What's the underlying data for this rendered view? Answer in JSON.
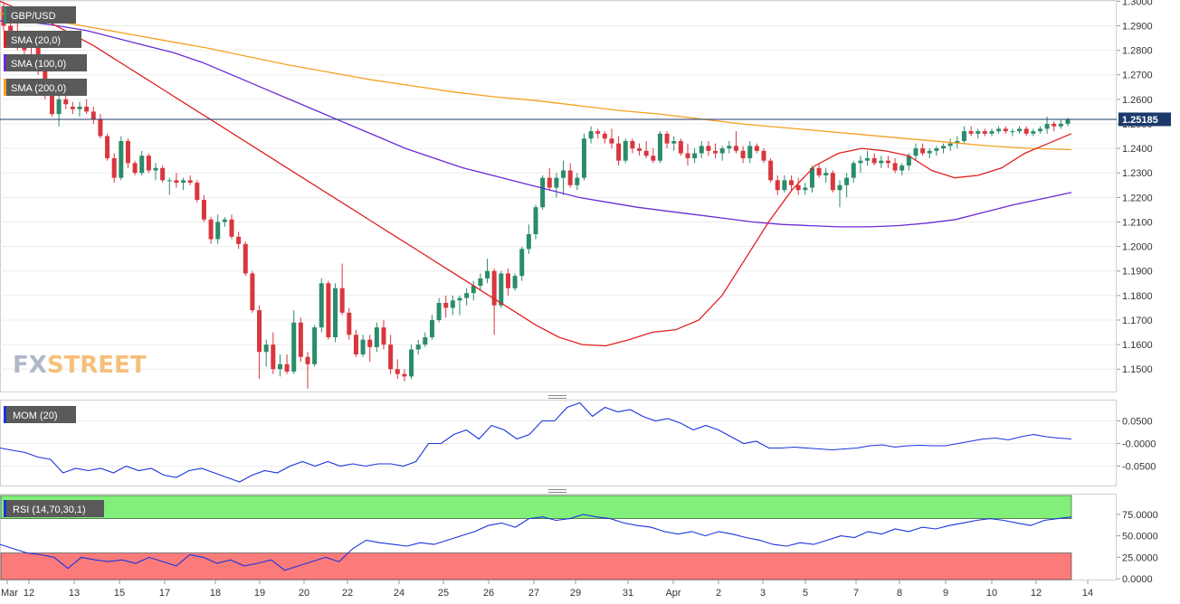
{
  "symbol": "GBP/USD",
  "watermark": {
    "part1": "FX",
    "part2": "STREET"
  },
  "indicators": {
    "sma20": {
      "label": "SMA (20,0)",
      "color": "#e02020"
    },
    "sma100": {
      "label": "SMA (100,0)",
      "color": "#6a2ad6"
    },
    "sma200": {
      "label": "SMA (200,0)",
      "color": "#f5a020"
    },
    "mom": {
      "label": "MOM (20)",
      "color": "#1a33dd"
    },
    "rsi": {
      "label": "RSI (14,70,30,1)",
      "color": "#1a33dd"
    }
  },
  "colors": {
    "up": "#2a8c6a",
    "down": "#d9363e",
    "current_price": "#1b3a6b",
    "overbought": "#80f07a",
    "oversold": "#fb7b7b"
  },
  "current_price": {
    "value": 1.25185,
    "label": "1.25185"
  },
  "chart_data": [
    {
      "type": "candlestick",
      "title": "GBP/USD",
      "ylim": [
        1.1405,
        1.3005
      ],
      "y_ticks": [
        "1.3000",
        "1.2900",
        "1.2800",
        "1.2700",
        "1.2600",
        "1.2500",
        "1.2400",
        "1.2300",
        "1.2200",
        "1.2100",
        "1.2000",
        "1.1900",
        "1.1800",
        "1.1700",
        "1.1600",
        "1.1500"
      ],
      "x_ticks": [
        "Mar",
        "12",
        "13",
        "15",
        "17",
        "18",
        "19",
        "20",
        "22",
        "24",
        "25",
        "26",
        "27",
        "29",
        "31",
        "Apr",
        "2",
        "3",
        "5",
        "7",
        "8",
        "9",
        "10",
        "12",
        "14"
      ],
      "candles_ohlc": [
        [
          1.298,
          1.299,
          1.288,
          1.29
        ],
        [
          1.29,
          1.295,
          1.285,
          1.288
        ],
        [
          1.287,
          1.292,
          1.28,
          1.283
        ],
        [
          1.283,
          1.288,
          1.278,
          1.28
        ],
        [
          1.282,
          1.284,
          1.278,
          1.281
        ],
        [
          1.281,
          1.283,
          1.27,
          1.272
        ],
        [
          1.272,
          1.274,
          1.26,
          1.262
        ],
        [
          1.262,
          1.264,
          1.253,
          1.254
        ],
        [
          1.254,
          1.262,
          1.249,
          1.26
        ],
        [
          1.26,
          1.262,
          1.256,
          1.258
        ],
        [
          1.257,
          1.259,
          1.254,
          1.256
        ],
        [
          1.256,
          1.259,
          1.253,
          1.257
        ],
        [
          1.257,
          1.26,
          1.254,
          1.255
        ],
        [
          1.255,
          1.257,
          1.25,
          1.252
        ],
        [
          1.252,
          1.254,
          1.244,
          1.245
        ],
        [
          1.245,
          1.246,
          1.235,
          1.236
        ],
        [
          1.236,
          1.238,
          1.226,
          1.228
        ],
        [
          1.228,
          1.245,
          1.227,
          1.243
        ],
        [
          1.243,
          1.244,
          1.232,
          1.234
        ],
        [
          1.234,
          1.235,
          1.229,
          1.23
        ],
        [
          1.23,
          1.239,
          1.229,
          1.237
        ],
        [
          1.237,
          1.238,
          1.23,
          1.231
        ],
        [
          1.231,
          1.234,
          1.227,
          1.232
        ],
        [
          1.232,
          1.233,
          1.226,
          1.227
        ],
        [
          1.227,
          1.228,
          1.221,
          1.227
        ],
        [
          1.227,
          1.23,
          1.224,
          1.226
        ],
        [
          1.226,
          1.228,
          1.223,
          1.227
        ],
        [
          1.227,
          1.229,
          1.225,
          1.226
        ],
        [
          1.226,
          1.227,
          1.218,
          1.219
        ],
        [
          1.219,
          1.221,
          1.21,
          1.211
        ],
        [
          1.211,
          1.212,
          1.201,
          1.203
        ],
        [
          1.203,
          1.213,
          1.201,
          1.21
        ],
        [
          1.21,
          1.212,
          1.208,
          1.211
        ],
        [
          1.211,
          1.213,
          1.203,
          1.204
        ],
        [
          1.204,
          1.206,
          1.199,
          1.201
        ],
        [
          1.201,
          1.202,
          1.188,
          1.189
        ],
        [
          1.189,
          1.19,
          1.173,
          1.174
        ],
        [
          1.174,
          1.176,
          1.146,
          1.157
        ],
        [
          1.157,
          1.162,
          1.151,
          1.16
        ],
        [
          1.16,
          1.165,
          1.148,
          1.15
        ],
        [
          1.15,
          1.156,
          1.147,
          1.152
        ],
        [
          1.152,
          1.156,
          1.148,
          1.149
        ],
        [
          1.149,
          1.174,
          1.148,
          1.169
        ],
        [
          1.169,
          1.171,
          1.153,
          1.155
        ],
        [
          1.155,
          1.157,
          1.142,
          1.152
        ],
        [
          1.152,
          1.168,
          1.151,
          1.167
        ],
        [
          1.167,
          1.187,
          1.165,
          1.185
        ],
        [
          1.185,
          1.186,
          1.162,
          1.163
        ],
        [
          1.163,
          1.185,
          1.161,
          1.183
        ],
        [
          1.183,
          1.193,
          1.172,
          1.173
        ],
        [
          1.173,
          1.175,
          1.162,
          1.164
        ],
        [
          1.164,
          1.166,
          1.155,
          1.156
        ],
        [
          1.156,
          1.164,
          1.155,
          1.162
        ],
        [
          1.162,
          1.164,
          1.153,
          1.159
        ],
        [
          1.159,
          1.169,
          1.157,
          1.167
        ],
        [
          1.167,
          1.17,
          1.158,
          1.16
        ],
        [
          1.16,
          1.164,
          1.148,
          1.15
        ],
        [
          1.15,
          1.154,
          1.146,
          1.148
        ],
        [
          1.148,
          1.15,
          1.145,
          1.147
        ],
        [
          1.147,
          1.16,
          1.146,
          1.158
        ],
        [
          1.158,
          1.162,
          1.156,
          1.16
        ],
        [
          1.16,
          1.165,
          1.159,
          1.163
        ],
        [
          1.163,
          1.172,
          1.162,
          1.17
        ],
        [
          1.17,
          1.179,
          1.169,
          1.177
        ],
        [
          1.177,
          1.18,
          1.171,
          1.175
        ],
        [
          1.175,
          1.18,
          1.172,
          1.178
        ],
        [
          1.178,
          1.18,
          1.172,
          1.179
        ],
        [
          1.179,
          1.183,
          1.176,
          1.181
        ],
        [
          1.181,
          1.186,
          1.178,
          1.184
        ],
        [
          1.184,
          1.189,
          1.182,
          1.187
        ],
        [
          1.187,
          1.195,
          1.185,
          1.19
        ],
        [
          1.19,
          1.191,
          1.164,
          1.176
        ],
        [
          1.176,
          1.19,
          1.175,
          1.189
        ],
        [
          1.189,
          1.191,
          1.18,
          1.183
        ],
        [
          1.183,
          1.189,
          1.182,
          1.188
        ],
        [
          1.188,
          1.2,
          1.186,
          1.199
        ],
        [
          1.199,
          1.209,
          1.197,
          1.205
        ],
        [
          1.205,
          1.217,
          1.203,
          1.216
        ],
        [
          1.216,
          1.229,
          1.215,
          1.228
        ],
        [
          1.228,
          1.232,
          1.223,
          1.224
        ],
        [
          1.224,
          1.23,
          1.22,
          1.228
        ],
        [
          1.228,
          1.235,
          1.221,
          1.231
        ],
        [
          1.231,
          1.234,
          1.224,
          1.225
        ],
        [
          1.225,
          1.23,
          1.223,
          1.228
        ],
        [
          1.228,
          1.246,
          1.227,
          1.244
        ],
        [
          1.244,
          1.249,
          1.242,
          1.247
        ],
        [
          1.247,
          1.248,
          1.244,
          1.246
        ],
        [
          1.246,
          1.247,
          1.242,
          1.244
        ],
        [
          1.244,
          1.248,
          1.24,
          1.242
        ],
        [
          1.242,
          1.245,
          1.233,
          1.235
        ],
        [
          1.235,
          1.244,
          1.234,
          1.243
        ],
        [
          1.243,
          1.244,
          1.238,
          1.24
        ],
        [
          1.24,
          1.242,
          1.237,
          1.239
        ],
        [
          1.239,
          1.243,
          1.236,
          1.237
        ],
        [
          1.237,
          1.24,
          1.234,
          1.235
        ],
        [
          1.235,
          1.247,
          1.234,
          1.246
        ],
        [
          1.246,
          1.247,
          1.24,
          1.242
        ],
        [
          1.242,
          1.245,
          1.239,
          1.243
        ],
        [
          1.243,
          1.244,
          1.237,
          1.238
        ],
        [
          1.238,
          1.242,
          1.233,
          1.236
        ],
        [
          1.236,
          1.24,
          1.234,
          1.238
        ],
        [
          1.238,
          1.243,
          1.236,
          1.241
        ],
        [
          1.241,
          1.243,
          1.237,
          1.239
        ],
        [
          1.239,
          1.242,
          1.236,
          1.238
        ],
        [
          1.238,
          1.241,
          1.235,
          1.24
        ],
        [
          1.24,
          1.243,
          1.238,
          1.241
        ],
        [
          1.241,
          1.247,
          1.238,
          1.239
        ],
        [
          1.239,
          1.241,
          1.234,
          1.236
        ],
        [
          1.236,
          1.243,
          1.234,
          1.241
        ],
        [
          1.241,
          1.242,
          1.238,
          1.239
        ],
        [
          1.239,
          1.24,
          1.234,
          1.235
        ],
        [
          1.235,
          1.236,
          1.226,
          1.227
        ],
        [
          1.227,
          1.229,
          1.221,
          1.223
        ],
        [
          1.223,
          1.229,
          1.222,
          1.227
        ],
        [
          1.227,
          1.229,
          1.223,
          1.225
        ],
        [
          1.225,
          1.228,
          1.221,
          1.223
        ],
        [
          1.223,
          1.226,
          1.221,
          1.224
        ],
        [
          1.224,
          1.233,
          1.222,
          1.232
        ],
        [
          1.232,
          1.234,
          1.228,
          1.229
        ],
        [
          1.229,
          1.232,
          1.226,
          1.23
        ],
        [
          1.23,
          1.231,
          1.222,
          1.223
        ],
        [
          1.223,
          1.227,
          1.216,
          1.225
        ],
        [
          1.225,
          1.23,
          1.22,
          1.228
        ],
        [
          1.228,
          1.235,
          1.226,
          1.234
        ],
        [
          1.234,
          1.237,
          1.23,
          1.235
        ],
        [
          1.235,
          1.239,
          1.233,
          1.236
        ],
        [
          1.236,
          1.238,
          1.233,
          1.234
        ],
        [
          1.234,
          1.237,
          1.232,
          1.235
        ],
        [
          1.235,
          1.237,
          1.232,
          1.234
        ],
        [
          1.234,
          1.236,
          1.23,
          1.231
        ],
        [
          1.231,
          1.234,
          1.229,
          1.233
        ],
        [
          1.233,
          1.238,
          1.231,
          1.237
        ],
        [
          1.237,
          1.242,
          1.235,
          1.24
        ],
        [
          1.24,
          1.242,
          1.237,
          1.238
        ],
        [
          1.238,
          1.24,
          1.236,
          1.239
        ],
        [
          1.239,
          1.241,
          1.237,
          1.24
        ],
        [
          1.24,
          1.242,
          1.238,
          1.241
        ],
        [
          1.241,
          1.244,
          1.239,
          1.242
        ],
        [
          1.242,
          1.245,
          1.24,
          1.243
        ],
        [
          1.243,
          1.249,
          1.242,
          1.247
        ],
        [
          1.247,
          1.249,
          1.245,
          1.246
        ],
        [
          1.246,
          1.248,
          1.244,
          1.247
        ],
        [
          1.247,
          1.248,
          1.245,
          1.246
        ],
        [
          1.246,
          1.248,
          1.245,
          1.247
        ],
        [
          1.247,
          1.249,
          1.246,
          1.248
        ],
        [
          1.248,
          1.249,
          1.246,
          1.247
        ],
        [
          1.247,
          1.248,
          1.245,
          1.247
        ],
        [
          1.247,
          1.249,
          1.246,
          1.248
        ],
        [
          1.248,
          1.249,
          1.245,
          1.246
        ],
        [
          1.246,
          1.248,
          1.245,
          1.247
        ],
        [
          1.247,
          1.249,
          1.246,
          1.248
        ],
        [
          1.248,
          1.253,
          1.246,
          1.25
        ],
        [
          1.25,
          1.251,
          1.247,
          1.249
        ],
        [
          1.249,
          1.252,
          1.248,
          1.25
        ],
        [
          1.25,
          1.2525,
          1.249,
          1.2518
        ]
      ],
      "sma20": [
        1.3,
        1.296,
        1.292,
        1.287,
        1.282,
        1.276,
        1.27,
        1.264,
        1.258,
        1.252,
        1.246,
        1.24,
        1.234,
        1.228,
        1.222,
        1.216,
        1.21,
        1.204,
        1.198,
        1.192,
        1.186,
        1.18,
        1.174,
        1.168,
        1.163,
        1.16,
        1.1595,
        1.162,
        1.165,
        1.166,
        1.17,
        1.18,
        1.195,
        1.21,
        1.223,
        1.233,
        1.238,
        1.24,
        1.239,
        1.237,
        1.231,
        1.228,
        1.229,
        1.232,
        1.238,
        1.242,
        1.246
      ],
      "sma100": [
        1.292,
        1.2915,
        1.29,
        1.288,
        1.285,
        1.282,
        1.279,
        1.275,
        1.27,
        1.265,
        1.26,
        1.255,
        1.25,
        1.245,
        1.24,
        1.236,
        1.232,
        1.229,
        1.226,
        1.223,
        1.22,
        1.218,
        1.216,
        1.2145,
        1.213,
        1.2115,
        1.21,
        1.209,
        1.2085,
        1.208,
        1.208,
        1.2085,
        1.2095,
        1.211,
        1.214,
        1.217,
        1.2195,
        1.222
      ],
      "sma200": [
        1.295,
        1.293,
        1.29,
        1.287,
        1.284,
        1.281,
        1.2775,
        1.274,
        1.271,
        1.268,
        1.2655,
        1.263,
        1.261,
        1.2595,
        1.2575,
        1.2555,
        1.254,
        1.252,
        1.25,
        1.2485,
        1.247,
        1.2455,
        1.244,
        1.2425,
        1.241,
        1.24,
        1.2395
      ],
      "mom": {
        "ylim": [
          -0.095,
          0.095
        ],
        "y_ticks": [
          "0.0500",
          "-0.0000",
          "-0.0500"
        ],
        "values": [
          -0.01,
          -0.015,
          -0.02,
          -0.03,
          -0.035,
          -0.065,
          -0.055,
          -0.06,
          -0.055,
          -0.065,
          -0.05,
          -0.06,
          -0.055,
          -0.07,
          -0.075,
          -0.06,
          -0.055,
          -0.065,
          -0.075,
          -0.085,
          -0.07,
          -0.06,
          -0.065,
          -0.05,
          -0.04,
          -0.05,
          -0.04,
          -0.05,
          -0.045,
          -0.05,
          -0.045,
          -0.045,
          -0.05,
          -0.04,
          0.0,
          0.0,
          0.02,
          0.03,
          0.01,
          0.04,
          0.03,
          0.01,
          0.02,
          0.05,
          0.05,
          0.08,
          0.09,
          0.06,
          0.08,
          0.07,
          0.075,
          0.06,
          0.05,
          0.055,
          0.045,
          0.03,
          0.04,
          0.03,
          0.015,
          0.0,
          0.005,
          -0.01,
          -0.01,
          -0.008,
          -0.01,
          -0.012,
          -0.014,
          -0.012,
          -0.01,
          -0.005,
          -0.003,
          -0.008,
          -0.005,
          -0.004,
          -0.005,
          -0.005,
          0.0,
          0.005,
          0.01,
          0.012,
          0.008,
          0.015,
          0.02,
          0.015,
          0.012,
          0.01
        ]
      },
      "rsi": {
        "ylim": [
          -2,
          98
        ],
        "y_ticks": [
          "75.0000",
          "50.0000",
          "25.0000",
          "0.0000"
        ],
        "overbought": 70,
        "oversold": 30,
        "values": [
          40,
          35,
          30,
          28,
          25,
          12,
          25,
          22,
          20,
          22,
          18,
          25,
          20,
          15,
          28,
          25,
          18,
          22,
          15,
          18,
          22,
          10,
          15,
          20,
          25,
          20,
          35,
          45,
          42,
          40,
          38,
          42,
          40,
          45,
          50,
          55,
          62,
          65,
          60,
          70,
          72,
          68,
          70,
          75,
          72,
          70,
          65,
          62,
          60,
          55,
          52,
          55,
          50,
          55,
          52,
          48,
          45,
          40,
          38,
          42,
          40,
          45,
          50,
          48,
          55,
          52,
          58,
          55,
          60,
          58,
          62,
          65,
          68,
          70,
          68,
          65,
          62,
          68,
          70,
          72
        ]
      }
    }
  ]
}
